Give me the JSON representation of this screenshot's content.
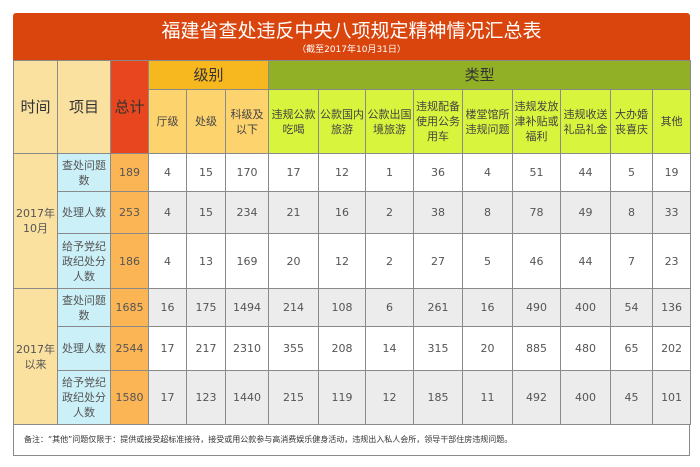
{
  "title": "福建省查处违反中央八项规定精神情况汇总表",
  "subtitle": "（截至2017年10月31日）",
  "headers": {
    "time": "时间",
    "item": "项目",
    "total": "总计",
    "level": "级别",
    "type": "类型",
    "levels": [
      "厅级",
      "处级",
      "科级及以下"
    ],
    "types": [
      "违规公款吃喝",
      "公款国内旅游",
      "公款出国境旅游",
      "违规配备使用公务用车",
      "楼堂馆所违规问题",
      "违规发放津补贴或福利",
      "违规收送礼品礼金",
      "大办婚丧喜庆",
      "其他"
    ]
  },
  "groups": [
    {
      "time": "2017年10月",
      "rows": [
        {
          "item": "查处问题数",
          "values": [
            "189",
            "4",
            "15",
            "170",
            "17",
            "12",
            "1",
            "36",
            "4",
            "51",
            "44",
            "5",
            "19"
          ]
        },
        {
          "item": "处理人数",
          "values": [
            "253",
            "4",
            "15",
            "234",
            "21",
            "16",
            "2",
            "38",
            "8",
            "78",
            "49",
            "8",
            "33"
          ]
        },
        {
          "item": "给予党纪政纪处分人数",
          "values": [
            "186",
            "4",
            "13",
            "169",
            "20",
            "12",
            "2",
            "27",
            "5",
            "46",
            "44",
            "7",
            "23"
          ]
        }
      ]
    },
    {
      "time": "2017年以来",
      "rows": [
        {
          "item": "查处问题数",
          "values": [
            "1685",
            "16",
            "175",
            "1494",
            "214",
            "108",
            "6",
            "261",
            "16",
            "490",
            "400",
            "54",
            "136"
          ]
        },
        {
          "item": "处理人数",
          "values": [
            "2544",
            "17",
            "217",
            "2310",
            "355",
            "208",
            "14",
            "315",
            "20",
            "885",
            "480",
            "65",
            "202"
          ]
        },
        {
          "item": "给予党纪政纪处分人数",
          "values": [
            "1580",
            "17",
            "123",
            "1440",
            "215",
            "119",
            "12",
            "185",
            "11",
            "492",
            "400",
            "45",
            "101"
          ]
        }
      ]
    }
  ],
  "note": "备注：“其他”问题仅限于：提供或接受超标准接待，接受或用公款参与高消费娱乐健身活动，违规出入私人会所，领导干部住房违规问题。"
}
